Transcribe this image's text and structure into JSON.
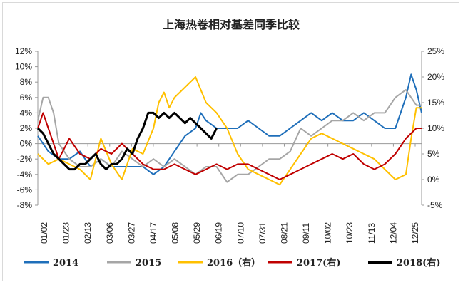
{
  "chart_data": {
    "type": "line",
    "title": "上海热卷相对基差同季比较",
    "x_ticks": [
      "01/02",
      "01/23",
      "02/13",
      "03/06",
      "03/27",
      "04/17",
      "05/08",
      "05/29",
      "06/19",
      "07/10",
      "07/31",
      "08/21",
      "09/11",
      "10/02",
      "10/23",
      "11/13",
      "12/04",
      "12/25"
    ],
    "y_left": {
      "ticks": [
        "12%",
        "10%",
        "8%",
        "6%",
        "4%",
        "2%",
        "0%",
        "-2%",
        "-4%",
        "-6%",
        "-8%"
      ],
      "range": [
        -8,
        12
      ]
    },
    "y_right": {
      "ticks": [
        "25%",
        "20%",
        "15%",
        "10%",
        "5%",
        "0%",
        "-5%"
      ],
      "range": [
        -5,
        25
      ]
    },
    "grid": false,
    "legend_position": "bottom",
    "series": [
      {
        "name": "2014",
        "axis": "left",
        "color": "#1f6fba",
        "width": 2,
        "x": [
          0,
          10,
          20,
          30,
          40,
          50,
          60,
          70,
          80,
          90,
          100,
          110,
          120,
          130,
          140,
          150,
          155,
          160,
          170,
          180,
          190,
          200,
          210,
          220,
          230,
          240,
          250,
          260,
          270,
          280,
          290,
          300,
          310,
          320,
          330,
          340,
          350,
          355,
          360,
          365
        ],
        "y": [
          1,
          -1,
          -2,
          -2,
          -1,
          -3,
          -2,
          -3,
          -3,
          -3,
          -3,
          -4,
          -3,
          -1,
          1,
          2,
          4,
          3,
          2,
          2,
          2,
          3,
          2,
          1,
          1,
          2,
          3,
          4,
          3,
          4,
          3,
          3,
          4,
          3,
          2,
          2,
          6,
          9,
          7,
          4
        ]
      },
      {
        "name": "2015",
        "axis": "left",
        "color": "#a6a6a6",
        "width": 2,
        "x": [
          0,
          5,
          10,
          15,
          20,
          30,
          40,
          50,
          60,
          70,
          80,
          90,
          100,
          110,
          120,
          130,
          140,
          150,
          160,
          170,
          180,
          190,
          200,
          210,
          220,
          230,
          240,
          250,
          260,
          270,
          280,
          290,
          300,
          310,
          320,
          330,
          340,
          350,
          360,
          365
        ],
        "y": [
          3,
          6,
          6,
          4,
          0,
          -2,
          -3,
          -3,
          -2,
          -3,
          -1,
          -2,
          -3,
          -2,
          -3,
          -2,
          -3,
          -4,
          -3,
          -3,
          -5,
          -4,
          -4,
          -3,
          -2,
          -2,
          -1,
          2,
          1,
          2,
          3,
          3,
          4,
          3,
          4,
          4,
          6,
          7,
          5,
          5
        ]
      },
      {
        "name": "2016（右）",
        "axis": "right",
        "color": "#ffc000",
        "width": 2,
        "x": [
          0,
          10,
          20,
          30,
          40,
          50,
          60,
          70,
          80,
          90,
          100,
          110,
          115,
          120,
          125,
          130,
          140,
          150,
          160,
          170,
          180,
          190,
          200,
          210,
          220,
          230,
          240,
          250,
          260,
          270,
          280,
          290,
          300,
          310,
          320,
          330,
          340,
          350,
          355,
          360,
          365
        ],
        "y": [
          5,
          3,
          4,
          3,
          2,
          0,
          8,
          3,
          0,
          6,
          5,
          10,
          15,
          17,
          14,
          16,
          18,
          20,
          15,
          13,
          10,
          5,
          2,
          1,
          0,
          -1,
          2,
          5,
          8,
          9,
          8,
          7,
          6,
          5,
          4,
          2,
          0,
          1,
          8,
          14,
          14
        ]
      },
      {
        "name": "2017(右)",
        "axis": "right",
        "color": "#c00000",
        "width": 2,
        "x": [
          0,
          5,
          10,
          20,
          30,
          40,
          50,
          60,
          70,
          80,
          90,
          100,
          110,
          120,
          130,
          140,
          150,
          160,
          170,
          180,
          190,
          200,
          210,
          220,
          230,
          240,
          250,
          260,
          270,
          280,
          290,
          300,
          310,
          320,
          330,
          340,
          350,
          360,
          365
        ],
        "y": [
          10,
          13,
          10,
          4,
          8,
          5,
          4,
          6,
          5,
          7,
          5,
          3,
          2,
          2,
          3,
          2,
          1,
          2,
          3,
          2,
          3,
          3,
          2,
          1,
          0,
          1,
          2,
          3,
          4,
          5,
          4,
          5,
          3,
          2,
          3,
          5,
          8,
          10,
          10
        ]
      },
      {
        "name": "2018(右)",
        "axis": "right",
        "color": "#000000",
        "width": 3,
        "x": [
          0,
          5,
          10,
          15,
          20,
          25,
          30,
          35,
          40,
          45,
          50,
          55,
          60,
          65,
          70,
          75,
          80,
          85,
          90,
          95,
          100,
          105,
          110,
          115,
          120,
          125,
          130,
          135,
          140,
          145,
          150,
          155,
          160,
          165,
          170
        ],
        "y": [
          10,
          9,
          7,
          5,
          4,
          3,
          2,
          2,
          3,
          3,
          4,
          5,
          3,
          2,
          3,
          3,
          4,
          6,
          5,
          8,
          10,
          13,
          13,
          12,
          13,
          12,
          13,
          12,
          11,
          12,
          11,
          10,
          9,
          8,
          10
        ]
      }
    ]
  }
}
